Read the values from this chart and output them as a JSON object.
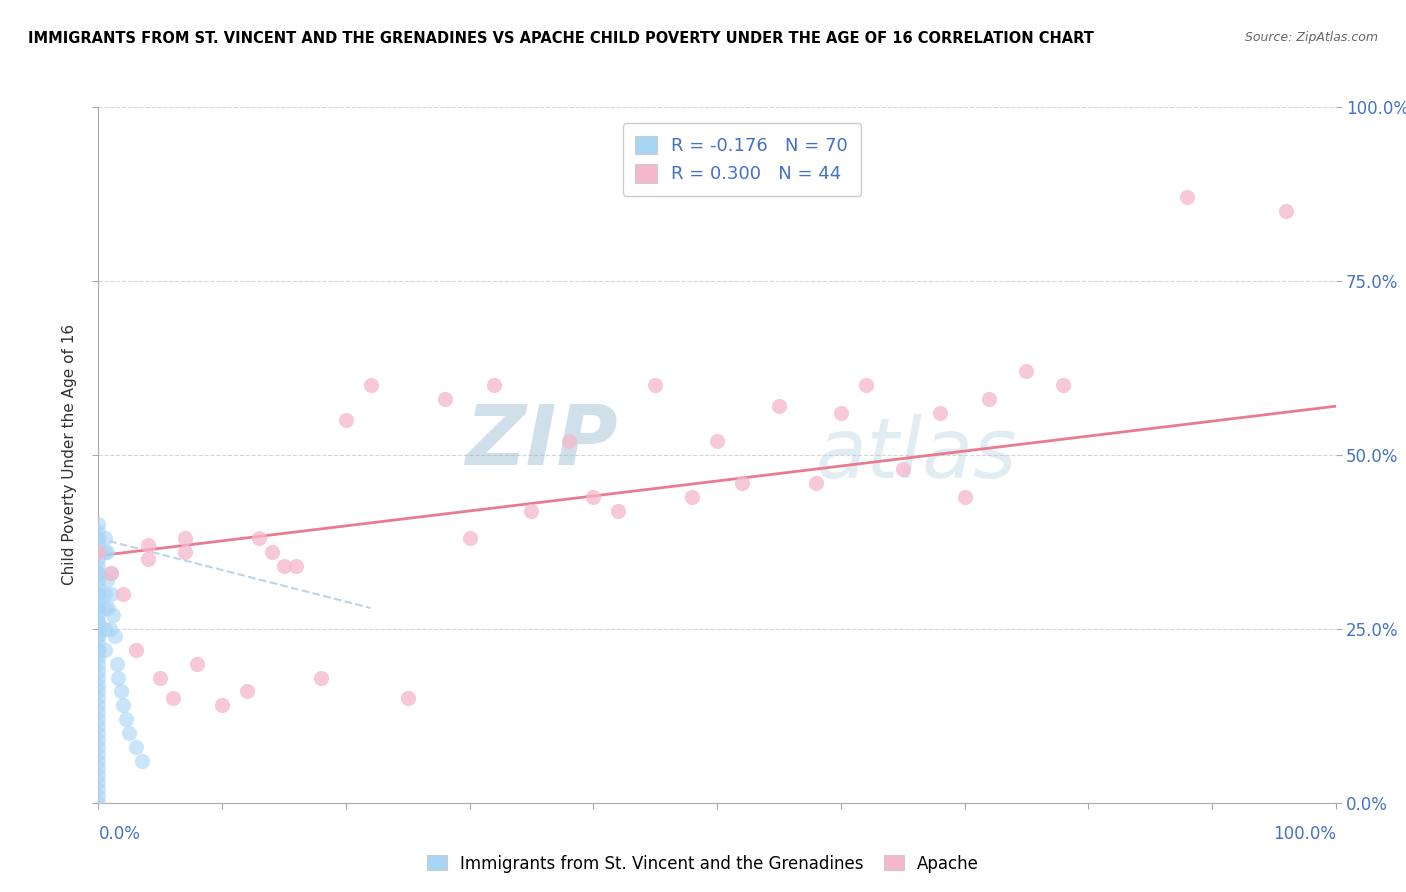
{
  "title": "IMMIGRANTS FROM ST. VINCENT AND THE GRENADINES VS APACHE CHILD POVERTY UNDER THE AGE OF 16 CORRELATION CHART",
  "source": "Source: ZipAtlas.com",
  "ylabel": "Child Poverty Under the Age of 16",
  "legend_blue_label": "R = -0.176   N = 70",
  "legend_pink_label": "R = 0.300   N = 44",
  "legend_bottom_label1": "Immigrants from St. Vincent and the Grenadines",
  "legend_bottom_label2": "Apache",
  "blue_color": "#a8d4f5",
  "pink_color": "#f5b8cc",
  "pink_line_color": "#e8748a",
  "blue_line_color": "#b8cfe0",
  "watermark_top": "ZIP",
  "watermark_bottom": "atlas",
  "blue_scatter_x": [
    0.0,
    0.0,
    0.0,
    0.0,
    0.0,
    0.0,
    0.0,
    0.0,
    0.0,
    0.0,
    0.0,
    0.0,
    0.0,
    0.0,
    0.0,
    0.0,
    0.0,
    0.0,
    0.0,
    0.0,
    0.0,
    0.0,
    0.0,
    0.0,
    0.0,
    0.0,
    0.0,
    0.0,
    0.0,
    0.0,
    0.0,
    0.0,
    0.0,
    0.0,
    0.0,
    0.0,
    0.0,
    0.0,
    0.0,
    0.0,
    0.0,
    0.0,
    0.0,
    0.0,
    0.0,
    0.0,
    0.0,
    0.0,
    0.005,
    0.005,
    0.005,
    0.005,
    0.005,
    0.005,
    0.007,
    0.007,
    0.008,
    0.009,
    0.01,
    0.01,
    0.012,
    0.013,
    0.015,
    0.016,
    0.018,
    0.02,
    0.022,
    0.025,
    0.03,
    0.035
  ],
  "blue_scatter_y": [
    0.0,
    0.01,
    0.02,
    0.03,
    0.04,
    0.05,
    0.06,
    0.07,
    0.08,
    0.09,
    0.1,
    0.11,
    0.12,
    0.13,
    0.14,
    0.15,
    0.16,
    0.17,
    0.18,
    0.19,
    0.2,
    0.21,
    0.22,
    0.23,
    0.24,
    0.25,
    0.26,
    0.27,
    0.28,
    0.29,
    0.3,
    0.31,
    0.32,
    0.33,
    0.34,
    0.35,
    0.36,
    0.37,
    0.38,
    0.39,
    0.4,
    0.36,
    0.33,
    0.3,
    0.28,
    0.26,
    0.24,
    0.22,
    0.38,
    0.36,
    0.3,
    0.28,
    0.25,
    0.22,
    0.36,
    0.32,
    0.28,
    0.25,
    0.33,
    0.3,
    0.27,
    0.24,
    0.2,
    0.18,
    0.16,
    0.14,
    0.12,
    0.1,
    0.08,
    0.06
  ],
  "pink_scatter_x": [
    0.0,
    0.01,
    0.02,
    0.03,
    0.04,
    0.04,
    0.05,
    0.06,
    0.07,
    0.07,
    0.08,
    0.1,
    0.12,
    0.13,
    0.14,
    0.15,
    0.16,
    0.18,
    0.2,
    0.22,
    0.25,
    0.28,
    0.3,
    0.32,
    0.35,
    0.38,
    0.4,
    0.42,
    0.45,
    0.48,
    0.5,
    0.52,
    0.55,
    0.58,
    0.6,
    0.62,
    0.65,
    0.68,
    0.7,
    0.72,
    0.75,
    0.78,
    0.88,
    0.96
  ],
  "pink_scatter_y": [
    0.36,
    0.33,
    0.3,
    0.22,
    0.37,
    0.35,
    0.18,
    0.15,
    0.38,
    0.36,
    0.2,
    0.14,
    0.16,
    0.38,
    0.36,
    0.34,
    0.34,
    0.18,
    0.55,
    0.6,
    0.15,
    0.58,
    0.38,
    0.6,
    0.42,
    0.52,
    0.44,
    0.42,
    0.6,
    0.44,
    0.52,
    0.46,
    0.57,
    0.46,
    0.56,
    0.6,
    0.48,
    0.56,
    0.44,
    0.58,
    0.62,
    0.6,
    0.87,
    0.85
  ],
  "pink_line_x": [
    0.0,
    1.0
  ],
  "pink_line_y": [
    0.355,
    0.57
  ],
  "blue_line_x": [
    0.0,
    0.22
  ],
  "blue_line_y": [
    0.38,
    0.28
  ],
  "xlim": [
    0.0,
    1.0
  ],
  "ylim": [
    0.0,
    1.0
  ],
  "yticks": [
    0.0,
    0.25,
    0.5,
    0.75,
    1.0
  ],
  "xticks": [
    0.0,
    0.1,
    0.2,
    0.3,
    0.4,
    0.5,
    0.6,
    0.7,
    0.8,
    0.9,
    1.0
  ]
}
